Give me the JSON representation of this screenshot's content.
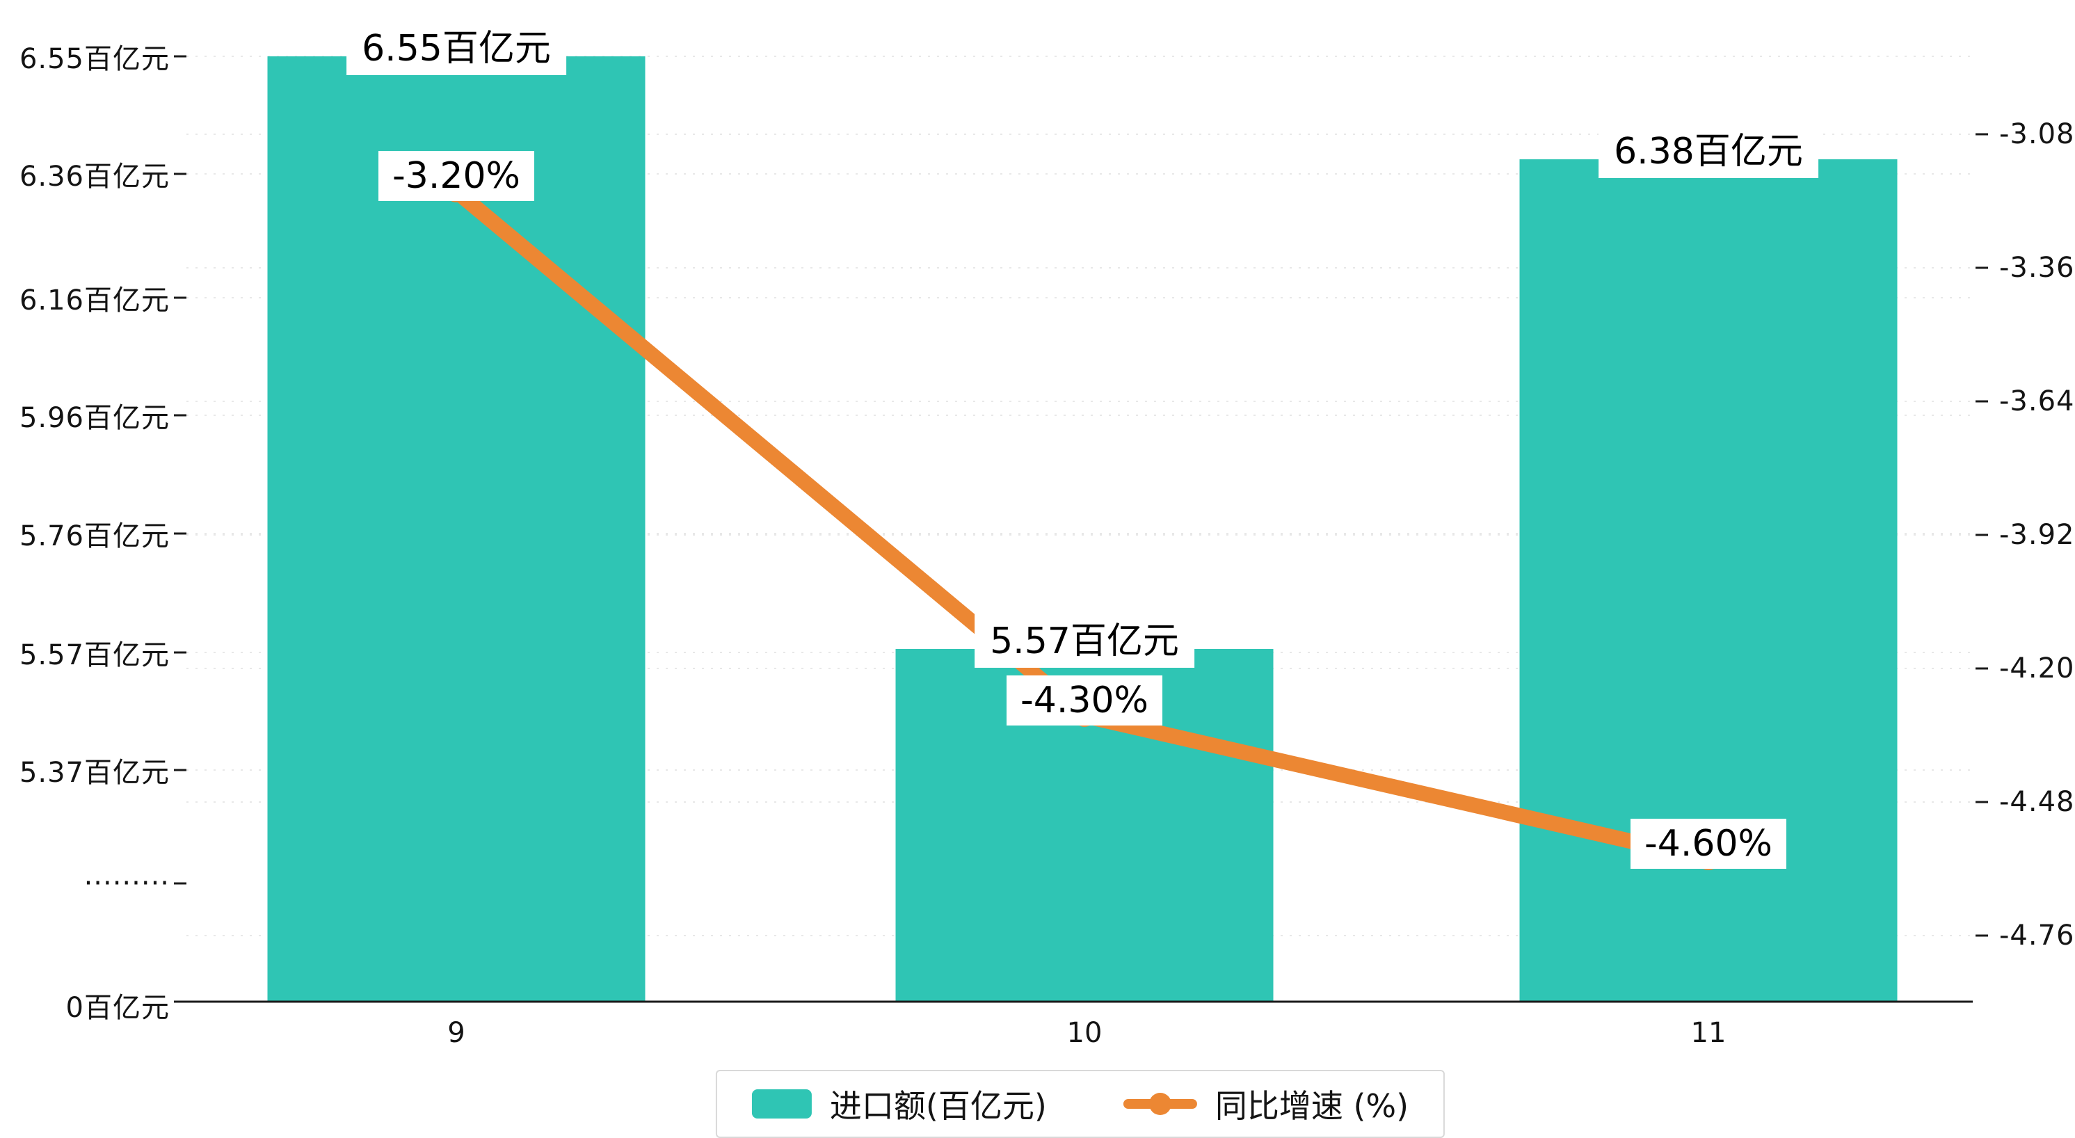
{
  "chart_data": {
    "type": "bar+line",
    "title": "",
    "categories": [
      "9",
      "10",
      "11"
    ],
    "series": [
      {
        "name": "进口额(百亿元)",
        "type": "bar",
        "values": [
          6.55,
          5.57,
          6.38
        ],
        "labels": [
          "6.55百亿元",
          "5.57百亿元",
          "6.38百亿元"
        ],
        "color": "#2fc5b4"
      },
      {
        "name": "同比增速 (%)",
        "type": "line",
        "values": [
          -3.2,
          -4.3,
          -4.6
        ],
        "labels": [
          "-3.20%",
          "-4.30%",
          "-4.60%"
        ],
        "color": "#ec8733"
      }
    ],
    "left_axis": {
      "ticks": [
        "6.55百亿元",
        "6.36百亿元",
        "6.16百亿元",
        "5.96百亿元",
        "5.76百亿元",
        "5.57百亿元",
        "5.37百亿元",
        "·········",
        "0百亿元"
      ]
    },
    "right_axis": {
      "ticks": [
        "-3.08",
        "-3.36",
        "-3.64",
        "-3.92",
        "-4.20",
        "-4.48",
        "-4.76"
      ]
    },
    "legend": {
      "items": [
        {
          "label": "进口额(百亿元)",
          "marker": "square",
          "color": "#2fc5b4"
        },
        {
          "label": "同比增速 (%)",
          "marker": "line-dot",
          "color": "#ec8733"
        }
      ]
    },
    "grid": true,
    "axis_break": true,
    "colors": {
      "bar": "#2fc5b4",
      "line": "#ec8733",
      "background": "#ffffff",
      "gridline": "#e8e8e8"
    }
  }
}
